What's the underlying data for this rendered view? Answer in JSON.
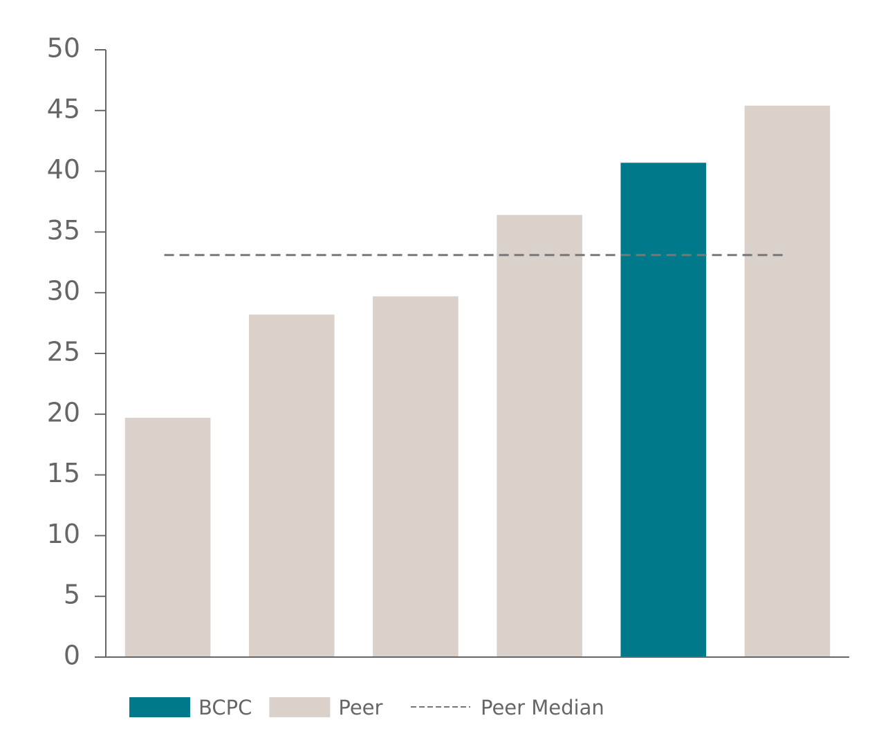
{
  "chart_data": {
    "type": "bar",
    "categories": [
      null,
      null,
      null,
      null,
      null,
      null
    ],
    "series": [
      {
        "name": "BCPC",
        "color": "#00798a",
        "values": [
          null,
          null,
          null,
          null,
          40.7,
          null
        ]
      },
      {
        "name": "Peer",
        "color": "#d9d1ca",
        "values": [
          19.7,
          28.2,
          29.7,
          36.4,
          null,
          45.4
        ]
      }
    ],
    "median": {
      "name": "Peer Median",
      "value": 33.1,
      "color": "#777777"
    },
    "ylim": [
      0,
      50
    ],
    "yticks": [
      0,
      5,
      10,
      15,
      20,
      25,
      30,
      35,
      40,
      45,
      50
    ],
    "grid": false
  }
}
